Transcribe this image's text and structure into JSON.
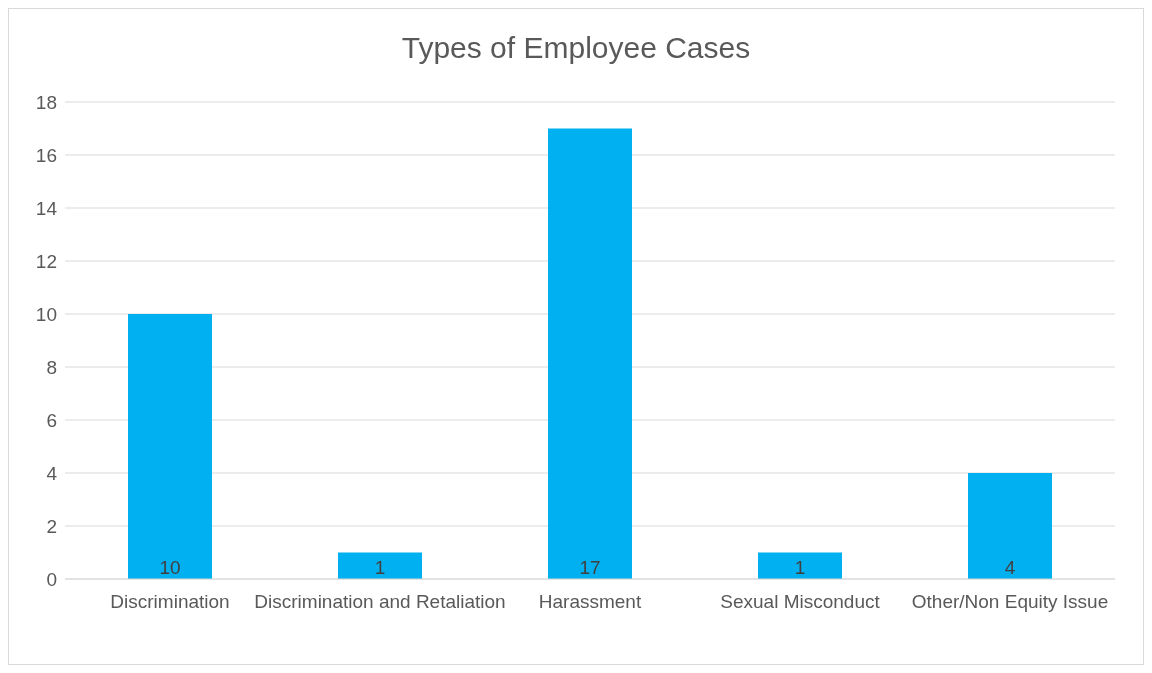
{
  "chart_data": {
    "type": "bar",
    "title": "Types of Employee Cases",
    "categories": [
      "Discrimination",
      "Discrimination and Retaliation",
      "Harassment",
      "Sexual Misconduct",
      "Other/Non Equity Issue"
    ],
    "values": [
      10,
      1,
      17,
      1,
      4
    ],
    "color": "#00b0f0",
    "ylim": [
      0,
      18
    ],
    "yticks": [
      0,
      2,
      4,
      6,
      8,
      10,
      12,
      14,
      16,
      18
    ],
    "grid": "y",
    "data_labels": true
  }
}
